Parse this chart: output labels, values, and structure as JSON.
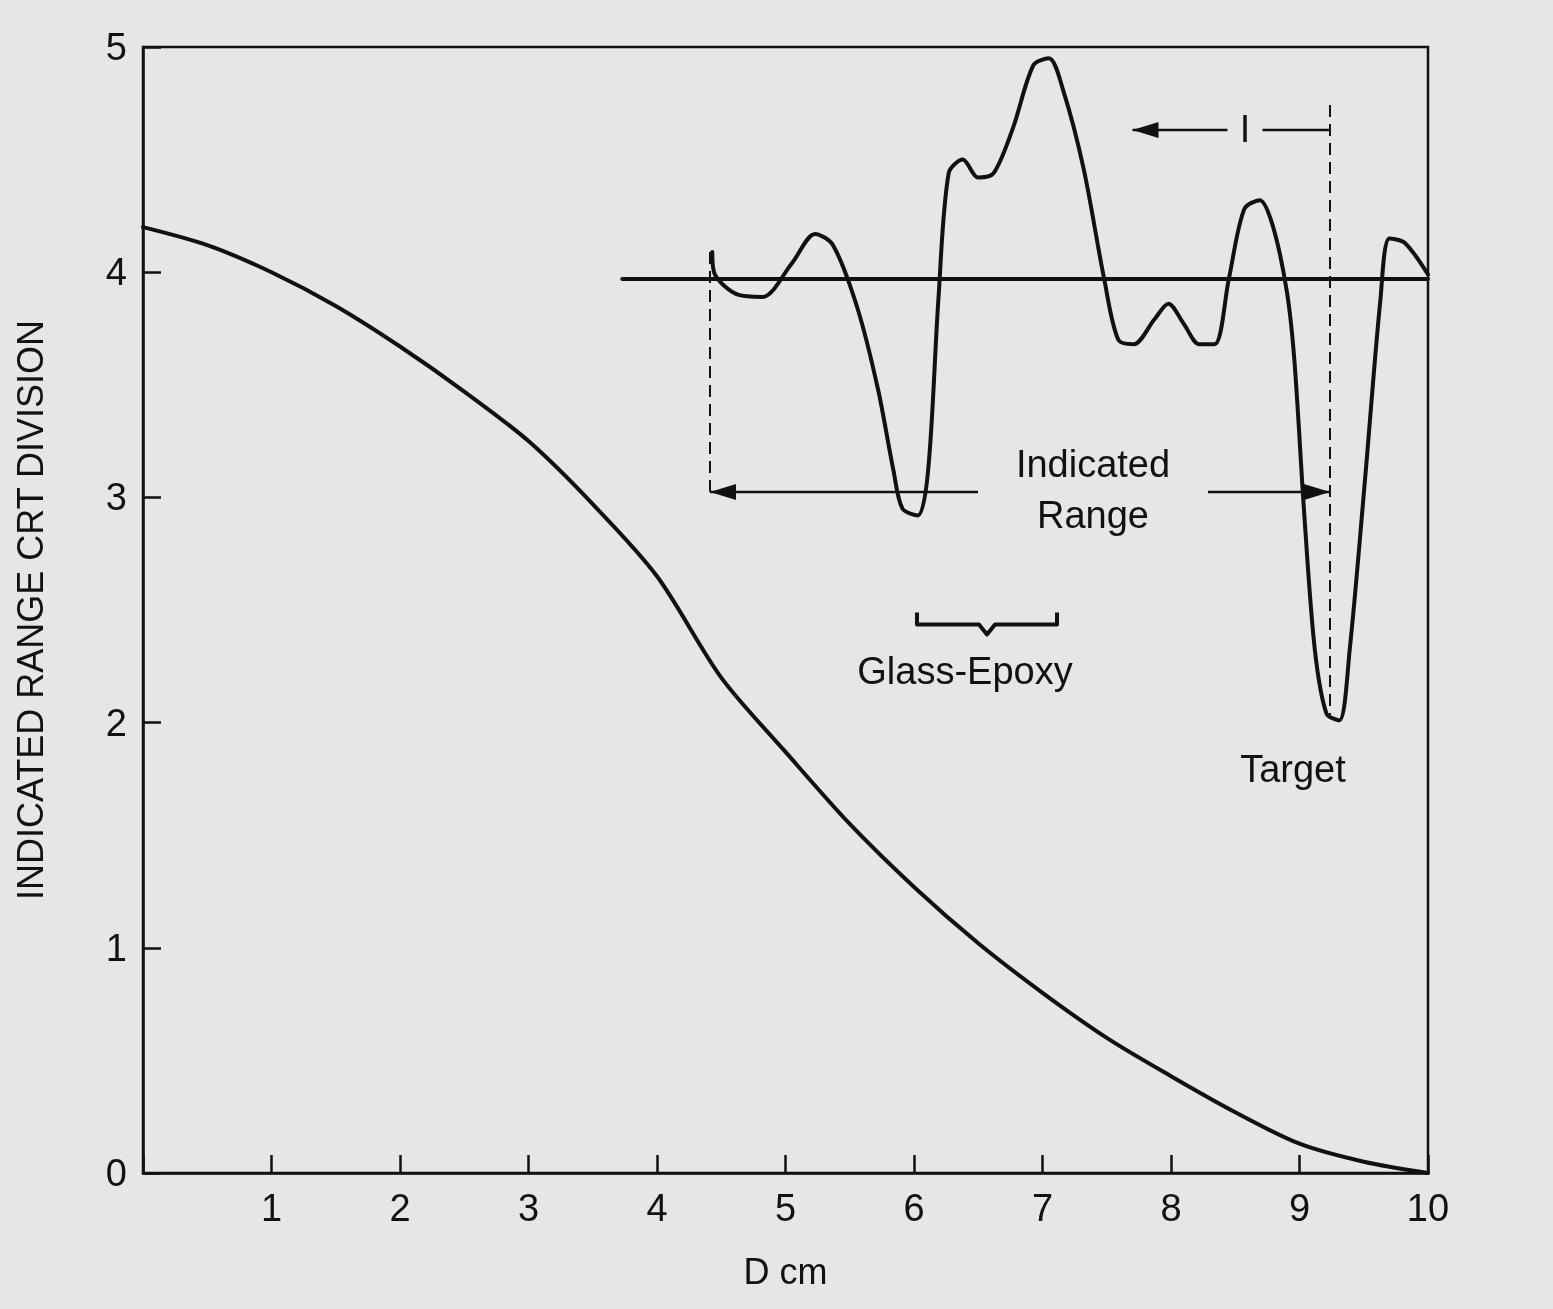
{
  "chart_data": {
    "type": "line",
    "xlabel": "D cm",
    "ylabel": "INDICATED RANGE CRT DIVISION",
    "xlim": [
      0,
      10
    ],
    "ylim": [
      0,
      5
    ],
    "xticks": [
      {
        "value": 0,
        "label": null
      },
      1,
      2,
      3,
      4,
      5,
      6,
      7,
      8,
      9,
      10
    ],
    "yticks": [
      0,
      1,
      2,
      3,
      4,
      5
    ],
    "series": [
      {
        "color": "#111111",
        "x": [
          0,
          0.5,
          1,
          1.5,
          2,
          2.5,
          3,
          3.5,
          4,
          4.5,
          5,
          5.5,
          6,
          6.5,
          7,
          7.5,
          8,
          8.5,
          9,
          9.5,
          10
        ],
        "values": [
          4.2,
          4.12,
          4.0,
          3.85,
          3.67,
          3.47,
          3.25,
          2.97,
          2.65,
          2.2,
          1.87,
          1.55,
          1.27,
          1.02,
          0.8,
          0.6,
          0.43,
          0.27,
          0.13,
          0.05,
          0
        ]
      },
      {
        "color": "#111111",
        "x": [
          4.43,
          4.45,
          4.63,
          4.82,
          5.05,
          5.23,
          5.37,
          5.56,
          5.72,
          5.84,
          5.91,
          6.03,
          6.11,
          6.19,
          6.27,
          6.38,
          6.5,
          6.62,
          6.77,
          6.93,
          7.05,
          7.16,
          7.32,
          7.48,
          7.59,
          7.71,
          7.87,
          7.98,
          8.1,
          8.22,
          8.34,
          8.45,
          8.57,
          8.69,
          8.79,
          8.9,
          8.96,
          9.04,
          9.12,
          9.21,
          9.31,
          9.39,
          9.51,
          9.63,
          9.7,
          9.82,
          10
        ],
        "values": [
          4.09,
          3.99,
          3.9,
          3.89,
          4.04,
          4.17,
          4.12,
          3.84,
          3.48,
          3.12,
          2.95,
          2.92,
          3.12,
          3.88,
          4.44,
          4.5,
          4.42,
          4.44,
          4.64,
          4.92,
          4.95,
          4.81,
          4.46,
          3.97,
          3.7,
          3.68,
          3.79,
          3.86,
          3.77,
          3.68,
          3.68,
          3.97,
          4.28,
          4.32,
          4.21,
          3.92,
          3.61,
          2.9,
          2.32,
          2.04,
          2.01,
          2.32,
          3.08,
          3.88,
          4.15,
          4.13,
          3.99
        ]
      },
      {
        "color": "#111111",
        "x": [
          3.73,
          10
        ],
        "values": [
          3.97,
          3.97
        ]
      }
    ],
    "annotations": [
      "I",
      "Indicated Range",
      "Glass-Epoxy",
      "Target"
    ]
  }
}
